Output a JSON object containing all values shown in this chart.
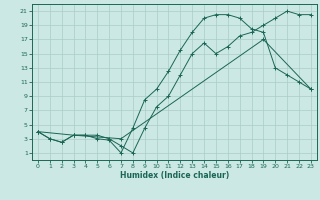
{
  "xlabel": "Humidex (Indice chaleur)",
  "bg_color": "#cce8e5",
  "line_color": "#1a6655",
  "grid_color": "#aaccc8",
  "xlim": [
    -0.5,
    23.5
  ],
  "ylim": [
    0.0,
    22.0
  ],
  "xticks": [
    0,
    1,
    2,
    3,
    4,
    5,
    6,
    7,
    8,
    9,
    10,
    11,
    12,
    13,
    14,
    15,
    16,
    17,
    18,
    19,
    20,
    21,
    22,
    23
  ],
  "yticks": [
    1,
    3,
    5,
    7,
    9,
    11,
    13,
    15,
    17,
    19,
    21
  ],
  "line1_x": [
    0,
    1,
    2,
    3,
    4,
    5,
    6,
    7,
    8,
    9,
    10,
    11,
    12,
    13,
    14,
    15,
    16,
    17,
    18,
    19,
    20,
    21,
    22,
    23
  ],
  "line1_y": [
    4,
    3,
    2.5,
    3.5,
    3.5,
    3.5,
    3,
    2,
    1,
    4.5,
    7.5,
    9,
    12,
    15,
    16.5,
    15,
    16,
    17.5,
    18,
    19,
    20,
    21,
    20.5,
    20.5
  ],
  "line2_x": [
    0,
    1,
    2,
    3,
    4,
    5,
    6,
    7,
    8,
    9,
    10,
    11,
    12,
    13,
    14,
    15,
    16,
    17,
    18,
    19,
    20,
    21,
    22,
    23
  ],
  "line2_y": [
    4,
    3,
    2.5,
    3.5,
    3.5,
    3.0,
    2.8,
    1,
    4.5,
    8.5,
    10,
    12.5,
    15.5,
    18,
    20,
    20.5,
    20.5,
    20,
    18.5,
    18,
    13,
    12,
    11,
    10
  ],
  "line3_x": [
    0,
    3,
    7,
    19,
    23
  ],
  "line3_y": [
    4,
    3.5,
    3,
    17,
    10
  ]
}
